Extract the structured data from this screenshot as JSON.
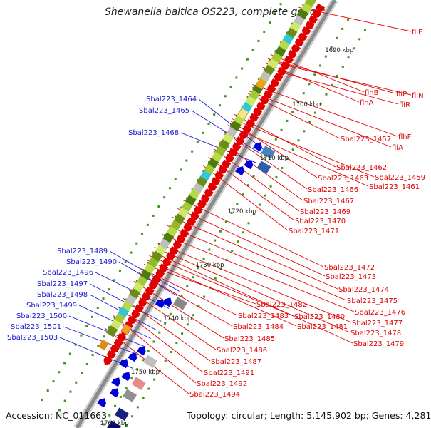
{
  "title": "Shewanella baltica OS223, complete genome",
  "footer": {
    "accession": "Accession: NC_011663",
    "topology": "Topology: circular; Length: 5,145,902 bp; Genes: 4,281"
  },
  "ticks": [
    "1690 kbp",
    "1700 kbp",
    "1710 kbp",
    "1720 kbp",
    "1730 kbp",
    "1740 kbp",
    "1750 kbp",
    "1760 kbp"
  ],
  "left_labels": [
    "Sbal223_1464",
    "Sbal223_1465",
    "Sbal223_1468",
    "Sbal223_1489",
    "Sbal223_1490",
    "Sbal223_1496",
    "Sbal223_1497",
    "Sbal223_1498",
    "Sbal223_1499",
    "Sbal223_1500",
    "Sbal223_1501",
    "Sbal223_1503"
  ],
  "right_labels": [
    "fliF",
    "flhB",
    "fliP",
    "fliN",
    "flhA",
    "fliR",
    "flhF",
    "fliA",
    "Sbal223_1457",
    "Sbal223_1462",
    "Sbal223_1459",
    "Sbal223_1463",
    "Sbal223_1461",
    "Sbal223_1466",
    "Sbal223_1467",
    "Sbal223_1469",
    "Sbal223_1470",
    "Sbal223_1471",
    "Sbal223_1472",
    "Sbal223_1473",
    "Sbal223_1474",
    "Sbal223_1475",
    "Sbal223_1476",
    "Sbal223_1477",
    "Sbal223_1478",
    "Sbal223_1479",
    "Sbal223_1480",
    "Sbal223_1481",
    "Sbal223_1482",
    "Sbal223_1483",
    "Sbal223_1484",
    "Sbal223_1485",
    "Sbal223_1486",
    "Sbal223_1487",
    "Sbal223_1491",
    "Sbal223_1492",
    "Sbal223_1494"
  ],
  "colors": {
    "forward": "#e00000",
    "reverse": "#0000d8",
    "label_left": "#1a1ad0",
    "label_right": "#e00000",
    "backbone": "#8a8a8a",
    "tick_dot": "#3a9a1a"
  }
}
